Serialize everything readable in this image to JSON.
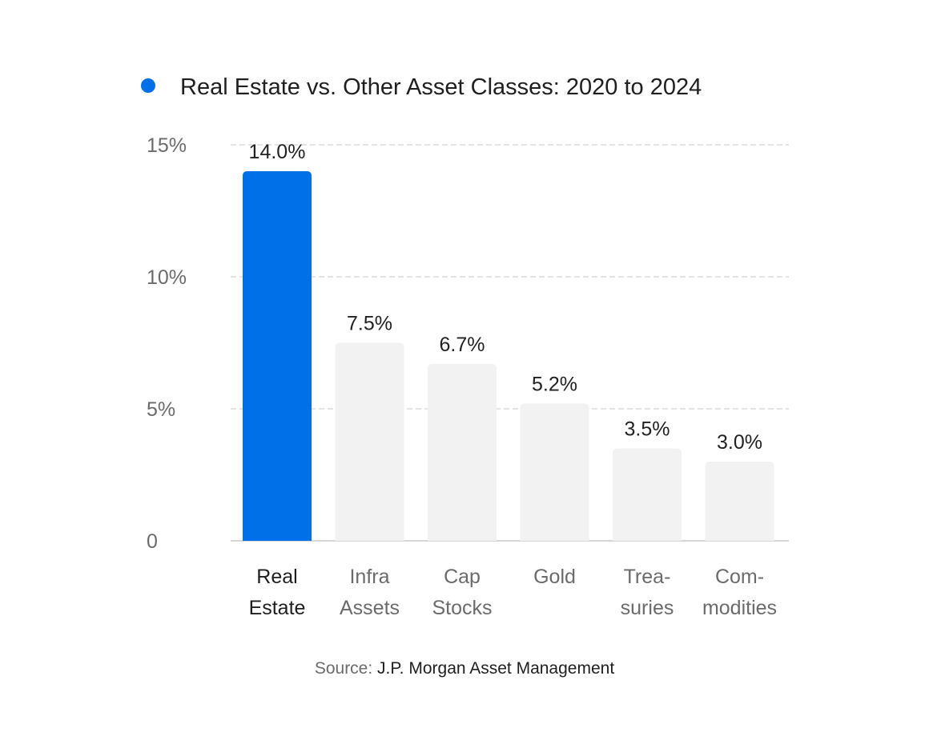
{
  "chart_data": {
    "type": "bar",
    "title": "Real Estate vs. Other Asset Classes: 2020 to 2024",
    "categories": [
      [
        "Real",
        "Estate"
      ],
      [
        "Infra",
        "Assets"
      ],
      [
        "Cap",
        "Stocks"
      ],
      [
        "Gold"
      ],
      [
        "Trea-",
        "suries"
      ],
      [
        "Com-",
        "modities"
      ]
    ],
    "values": [
      14.0,
      7.5,
      6.7,
      5.2,
      3.5,
      3.0
    ],
    "data_labels": [
      "14.0%",
      "7.5%",
      "6.7%",
      "5.2%",
      "3.5%",
      "3.0%"
    ],
    "highlight_index": 0,
    "ylim": [
      0,
      15
    ],
    "yticks": [
      0,
      5,
      10,
      15
    ],
    "ytick_labels": [
      "0",
      "5%",
      "10%",
      "15%"
    ],
    "grid": true,
    "legend_position": "top-left",
    "colors": {
      "highlight": "#0070e8",
      "bar": "#f2f2f2",
      "legend_dot": "#0070e8"
    }
  },
  "source": {
    "prefix": "Source:",
    "name": "J.P. Morgan Asset Management"
  }
}
